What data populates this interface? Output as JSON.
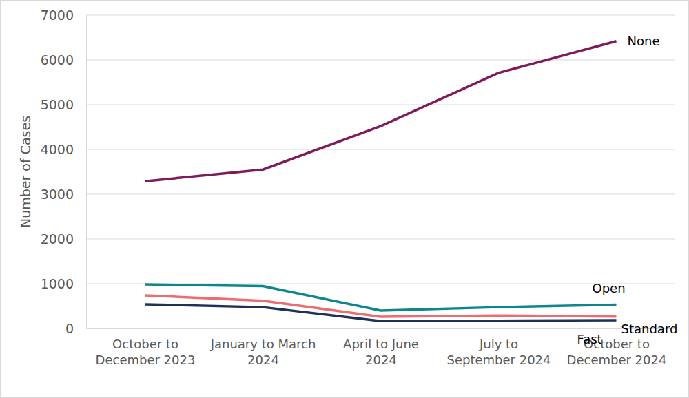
{
  "chart_data": {
    "type": "line",
    "y_label": "Number of Cases",
    "categories": [
      "October to December 2023",
      "January to March 2024",
      "April to June 2024",
      "July to September 2024",
      "October to December 2024"
    ],
    "series": [
      {
        "name": "None",
        "color": "#7f1a5b",
        "values": [
          3290,
          3550,
          4520,
          5710,
          6420
        ]
      },
      {
        "name": "Open",
        "color": "#0e878c",
        "values": [
          985,
          945,
          400,
          475,
          530
        ]
      },
      {
        "name": "Standard",
        "color": "#ee6b70",
        "values": [
          740,
          620,
          260,
          290,
          265
        ]
      },
      {
        "name": "Fast",
        "color": "#1e3158",
        "values": [
          540,
          475,
          165,
          175,
          185
        ]
      }
    ],
    "ylim": [
      0,
      7000
    ],
    "yticks": [
      0,
      1000,
      2000,
      3000,
      4000,
      5000,
      6000,
      7000
    ],
    "grid": true
  }
}
